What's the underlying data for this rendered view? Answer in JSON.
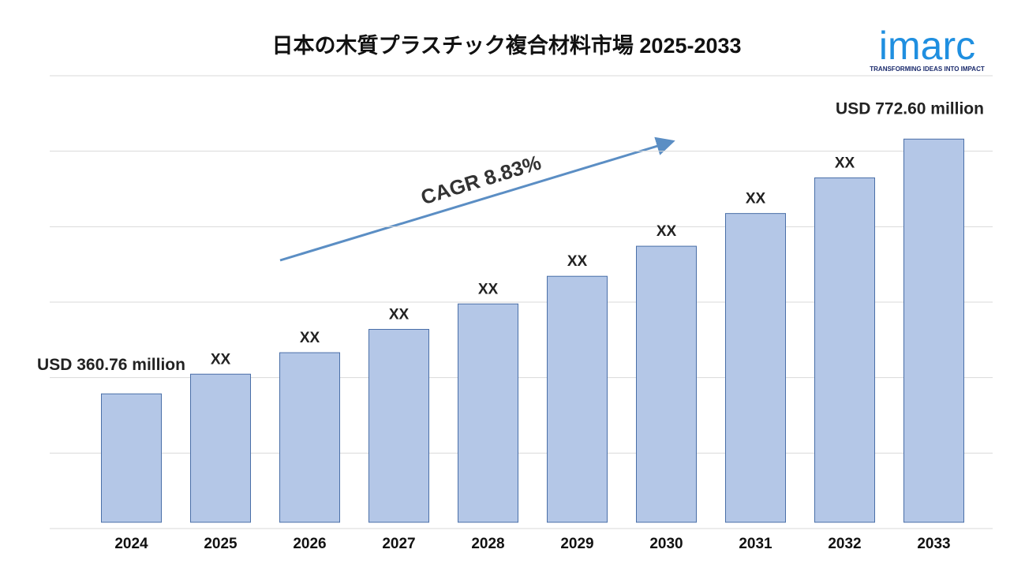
{
  "chart_data": {
    "type": "bar",
    "title": "日本の木質プラスチック複合材料市場 2025-2033",
    "categories": [
      "2024",
      "2025",
      "2026",
      "2027",
      "2028",
      "2029",
      "2030",
      "2031",
      "2032",
      "2033"
    ],
    "values": [
      360.76,
      392.6,
      427.3,
      465.0,
      506.1,
      550.8,
      599.4,
      652.3,
      709.9,
      772.6
    ],
    "value_labels": [
      "USD 360.76 million",
      "XX",
      "XX",
      "XX",
      "XX",
      "XX",
      "XX",
      "XX",
      "XX",
      "USD 772.60 million"
    ],
    "color": "#b4c7e7",
    "ylim": [
      143,
      875
    ],
    "grid": true,
    "annotation": "CAGR 8.83%"
  },
  "logo": {
    "name": "imarc",
    "tagline": "TRANSFORMING IDEAS INTO IMPACT"
  }
}
